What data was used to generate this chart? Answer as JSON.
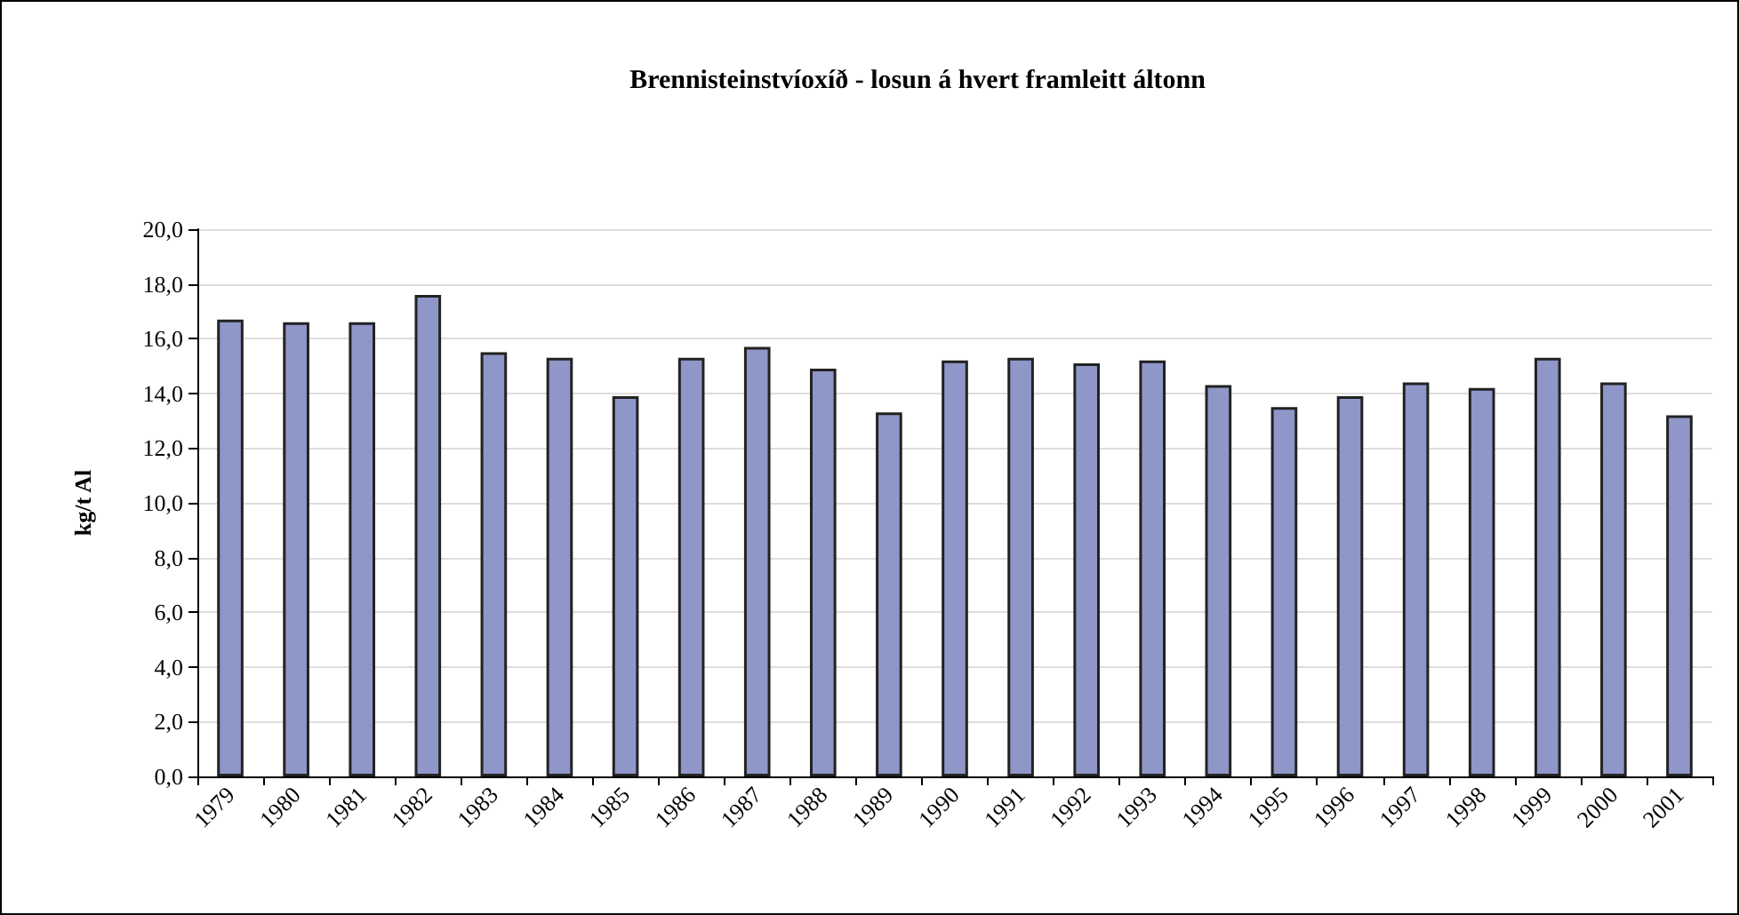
{
  "chart_data": {
    "type": "bar",
    "title": "Brennisteinstvíoxíð - losun á hvert framleitt áltonn",
    "ylabel": "kg/t Al",
    "categories": [
      "1979",
      "1980",
      "1981",
      "1982",
      "1983",
      "1984",
      "1985",
      "1986",
      "1987",
      "1988",
      "1989",
      "1990",
      "1991",
      "1992",
      "1993",
      "1994",
      "1995",
      "1996",
      "1997",
      "1998",
      "1999",
      "2000",
      "2001"
    ],
    "values": [
      16.7,
      16.6,
      16.6,
      17.6,
      15.5,
      15.3,
      13.9,
      15.3,
      15.7,
      14.9,
      13.3,
      15.2,
      15.3,
      15.1,
      15.2,
      14.3,
      13.5,
      13.9,
      14.4,
      14.2,
      15.3,
      14.4,
      13.2
    ],
    "color": "#8f96c8",
    "ylim": [
      0,
      20
    ],
    "yticks": [
      {
        "value": 0,
        "label": "0,0"
      },
      {
        "value": 2,
        "label": "2,0"
      },
      {
        "value": 4,
        "label": "4,0"
      },
      {
        "value": 6,
        "label": "6,0"
      },
      {
        "value": 8,
        "label": "8,0"
      },
      {
        "value": 10,
        "label": "10,0"
      },
      {
        "value": 12,
        "label": "12,0"
      },
      {
        "value": 14,
        "label": "14,0"
      },
      {
        "value": 16,
        "label": "16,0"
      },
      {
        "value": 18,
        "label": "18,0"
      },
      {
        "value": 20,
        "label": "20,0"
      }
    ],
    "grid": "y"
  }
}
